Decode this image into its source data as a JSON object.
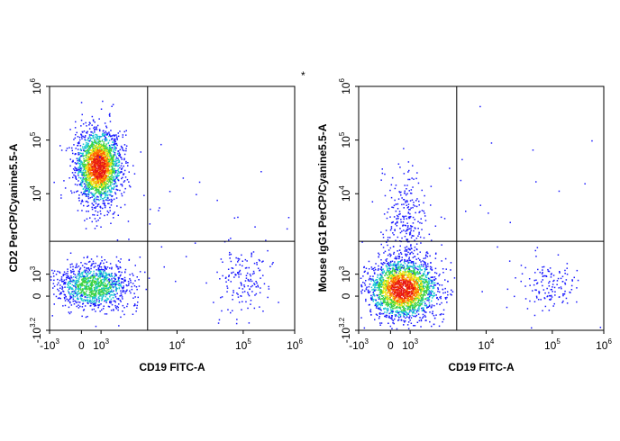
{
  "asterisk": "*",
  "colors": {
    "low": "#1a1aff",
    "mid": "#19c8d2",
    "mid2": "#3cd23c",
    "high": "#f0e614",
    "peak": "#ff6a00",
    "top": "#e61414",
    "gate": "#000000"
  },
  "chart_data": [
    {
      "type": "scatter",
      "subtype": "flow-cytometry-density-dot-plot",
      "xlabel": "CD19 FITC-A",
      "ylabel": "CD2 PerCP/Cyanine5.5-A",
      "x_ticks": [
        {
          "base": "-10",
          "exp": "3"
        },
        {
          "base": "0",
          "exp": ""
        },
        {
          "base": "10",
          "exp": "3"
        },
        {
          "base": "10",
          "exp": "4"
        },
        {
          "base": "10",
          "exp": "5"
        },
        {
          "base": "10",
          "exp": "6"
        }
      ],
      "y_ticks": [
        {
          "base": "-10",
          "exp": "3.2"
        },
        {
          "base": "0",
          "exp": ""
        },
        {
          "base": "10",
          "exp": "3"
        },
        {
          "base": "10",
          "exp": "4"
        },
        {
          "base": "10",
          "exp": "5"
        },
        {
          "base": "10",
          "exp": "6"
        }
      ],
      "x_tick_positions": [
        0.0,
        0.13,
        0.21,
        0.52,
        0.79,
        1.0
      ],
      "y_tick_positions": [
        0.0,
        0.14,
        0.23,
        0.56,
        0.78,
        1.0
      ],
      "quadrant_gate": {
        "x": 0.4,
        "y": 0.365
      },
      "populations": [
        {
          "name": "CD2+ CD19-",
          "cx": 0.2,
          "cy": 0.67,
          "sx": 0.045,
          "sy": 0.075,
          "n": 2200,
          "peak": "top"
        },
        {
          "name": "CD2- CD19-",
          "cx": 0.18,
          "cy": 0.18,
          "sx": 0.075,
          "sy": 0.045,
          "n": 1100,
          "peak": "mid2"
        },
        {
          "name": "CD2- CD19+",
          "cx": 0.79,
          "cy": 0.2,
          "sx": 0.06,
          "sy": 0.065,
          "n": 150,
          "peak": "low"
        },
        {
          "name": "scatter",
          "cx": 0.55,
          "cy": 0.4,
          "sx": 0.25,
          "sy": 0.25,
          "n": 60,
          "peak": "low"
        }
      ]
    },
    {
      "type": "scatter",
      "subtype": "flow-cytometry-density-dot-plot",
      "xlabel": "CD19 FITC-A",
      "ylabel": "Mouse IgG1 PerCP/Cyanine5.5-A",
      "x_ticks": [
        {
          "base": "-10",
          "exp": "3"
        },
        {
          "base": "0",
          "exp": ""
        },
        {
          "base": "10",
          "exp": "3"
        },
        {
          "base": "10",
          "exp": "4"
        },
        {
          "base": "10",
          "exp": "5"
        },
        {
          "base": "10",
          "exp": "6"
        }
      ],
      "y_ticks": [
        {
          "base": "-10",
          "exp": "3.2"
        },
        {
          "base": "0",
          "exp": ""
        },
        {
          "base": "10",
          "exp": "3"
        },
        {
          "base": "10",
          "exp": "4"
        },
        {
          "base": "10",
          "exp": "5"
        },
        {
          "base": "10",
          "exp": "6"
        }
      ],
      "x_tick_positions": [
        0.0,
        0.13,
        0.21,
        0.52,
        0.79,
        1.0
      ],
      "y_tick_positions": [
        0.0,
        0.14,
        0.23,
        0.56,
        0.78,
        1.0
      ],
      "quadrant_gate": {
        "x": 0.4,
        "y": 0.365
      },
      "populations": [
        {
          "name": "CD2- CD19-",
          "cx": 0.18,
          "cy": 0.17,
          "sx": 0.07,
          "sy": 0.06,
          "n": 2400,
          "peak": "top"
        },
        {
          "name": "IgG1+ tail",
          "cx": 0.19,
          "cy": 0.45,
          "sx": 0.045,
          "sy": 0.1,
          "n": 260,
          "peak": "low"
        },
        {
          "name": "CD2- CD19+",
          "cx": 0.79,
          "cy": 0.18,
          "sx": 0.06,
          "sy": 0.05,
          "n": 130,
          "peak": "low"
        },
        {
          "name": "scatter",
          "cx": 0.55,
          "cy": 0.4,
          "sx": 0.25,
          "sy": 0.25,
          "n": 35,
          "peak": "low"
        }
      ]
    }
  ]
}
